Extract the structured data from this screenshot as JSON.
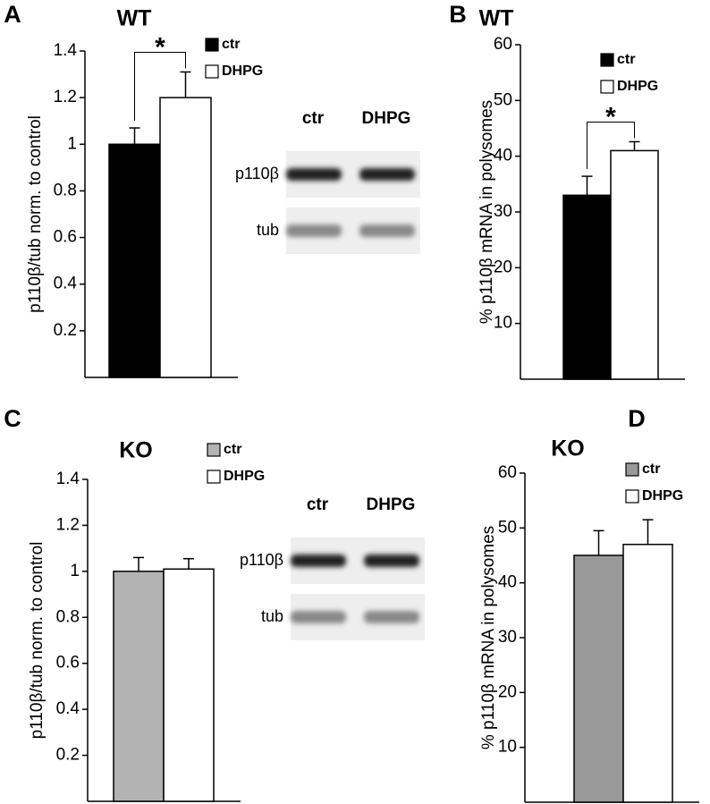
{
  "chart_data": [
    {
      "type": "bar",
      "panel_label": "A",
      "title": "WT",
      "y_label": "p110β/tub norm. to control",
      "ylim": [
        0,
        1.4
      ],
      "yticks": [
        0.2,
        0.4,
        0.6,
        0.8,
        1,
        1.2,
        1.4
      ],
      "series": [
        {
          "name": "ctr",
          "color": "#000000",
          "values": [
            1.0
          ],
          "errors": [
            0.07
          ]
        },
        {
          "name": "DHPG",
          "color": "#ffffff",
          "values": [
            1.2
          ],
          "errors": [
            0.11
          ]
        }
      ],
      "annotation": "*",
      "blot": {
        "lanes": [
          "ctr",
          "DHPG"
        ],
        "rows": [
          "p110β",
          "tub"
        ]
      }
    },
    {
      "type": "bar",
      "panel_label": "B",
      "title": "WT",
      "y_label": "% p110β mRNA in polysomes",
      "ylim": [
        0,
        60
      ],
      "yticks": [
        10,
        20,
        30,
        40,
        50,
        60
      ],
      "series": [
        {
          "name": "ctr",
          "color": "#000000",
          "values": [
            33
          ],
          "errors": [
            3.4
          ]
        },
        {
          "name": "DHPG",
          "color": "#ffffff",
          "values": [
            41
          ],
          "errors": [
            1.6
          ]
        }
      ],
      "annotation": "*"
    },
    {
      "type": "bar",
      "panel_label": "C",
      "title": "KO",
      "y_label": "p110β/tub norm. to control",
      "ylim": [
        0,
        1.4
      ],
      "yticks": [
        0.2,
        0.4,
        0.6,
        0.8,
        1,
        1.2,
        1.4
      ],
      "series": [
        {
          "name": "ctr",
          "color": "#b3b3b3",
          "values": [
            1.0
          ],
          "errors": [
            0.06
          ]
        },
        {
          "name": "DHPG",
          "color": "#ffffff",
          "values": [
            1.01
          ],
          "errors": [
            0.045
          ]
        }
      ],
      "blot": {
        "lanes": [
          "ctr",
          "DHPG"
        ],
        "rows": [
          "p110β",
          "tub"
        ]
      }
    },
    {
      "type": "bar",
      "panel_label": "D",
      "title": "KO",
      "y_label": "% p110β mRNA in polysomes",
      "ylim": [
        0,
        60
      ],
      "yticks": [
        10,
        20,
        30,
        40,
        50,
        60
      ],
      "series": [
        {
          "name": "ctr",
          "color": "#999999",
          "values": [
            45
          ],
          "errors": [
            4.5
          ]
        },
        {
          "name": "DHPG",
          "color": "#ffffff",
          "values": [
            47
          ],
          "errors": [
            4.5
          ]
        }
      ]
    }
  ]
}
